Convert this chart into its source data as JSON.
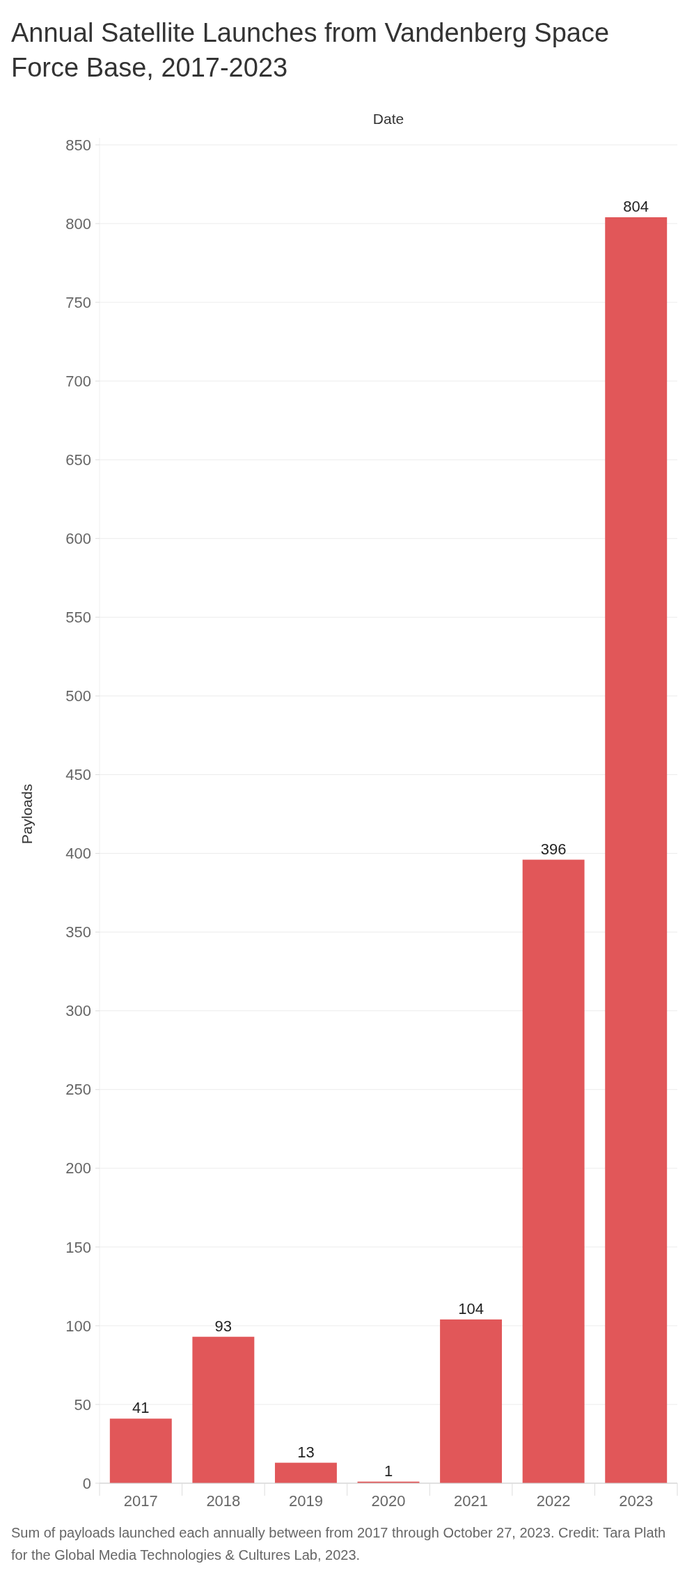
{
  "chart_data": {
    "type": "bar",
    "title": "Annual Satellite Launches from Vandenberg Space Force Base, 2017-2023",
    "xlabel": "Date",
    "ylabel": "Payloads",
    "categories": [
      "2017",
      "2018",
      "2019",
      "2020",
      "2021",
      "2022",
      "2023"
    ],
    "values": [
      41,
      93,
      13,
      1,
      104,
      396,
      804
    ],
    "color": "#e15759",
    "data_labels": true,
    "ylim": [
      0,
      850
    ],
    "yticks": [
      0,
      50,
      100,
      150,
      200,
      250,
      300,
      350,
      400,
      450,
      500,
      550,
      600,
      650,
      700,
      750,
      800,
      850
    ],
    "grid": "y",
    "annotations": [
      "Sum of payloads launched each annually between from 2017 through October 27, 2023. Credit: Tara Plath for the Global Media Technologies & Cultures Lab, 2023."
    ]
  }
}
